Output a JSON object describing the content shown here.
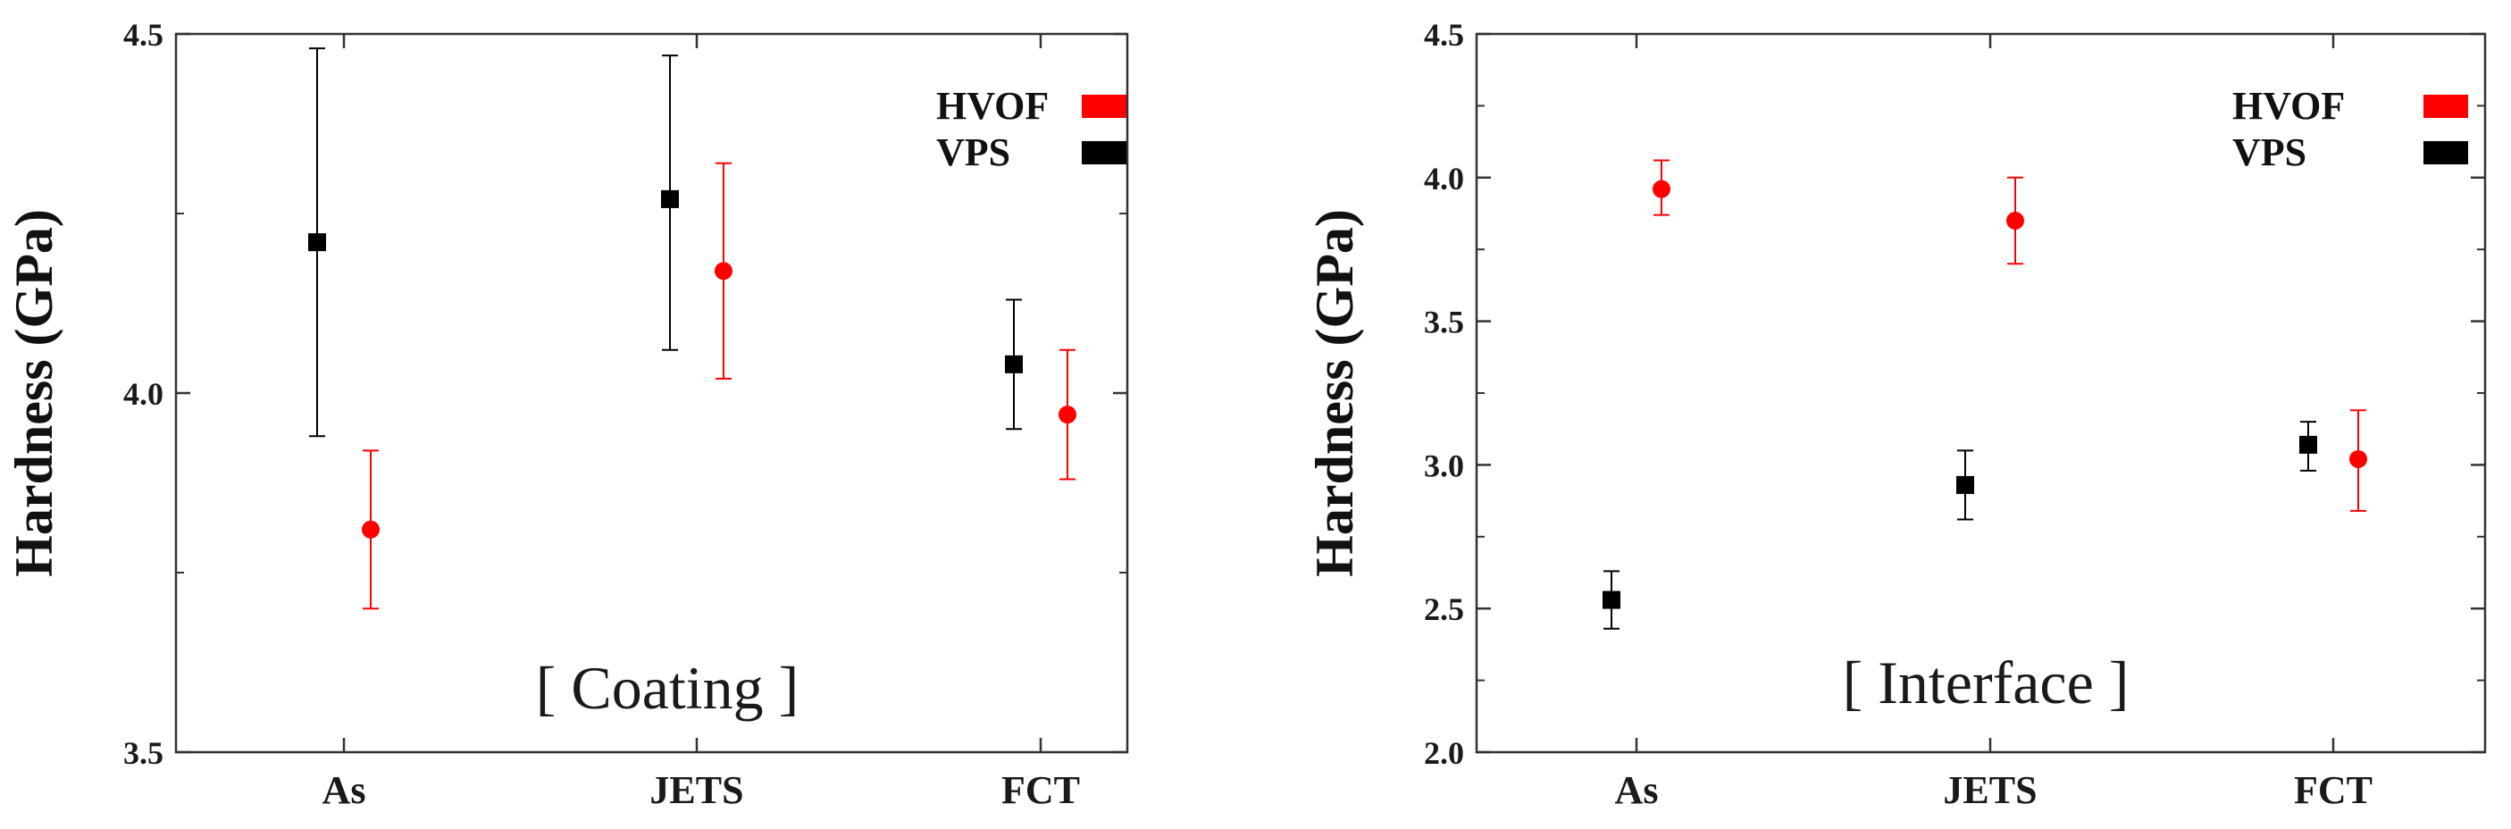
{
  "chart_data": [
    {
      "type": "scatter",
      "title": "",
      "annotation": "[ Coating ]",
      "xlabel": "",
      "ylabel": "Hardness (GPa)",
      "ylim": [
        3.5,
        4.5
      ],
      "yticks": [
        3.5,
        4.0,
        4.5
      ],
      "ytick_labels": [
        "3.5",
        "4.0",
        "4.5"
      ],
      "categories": [
        "As",
        "JETS",
        "FCT"
      ],
      "legend_position": "top-right",
      "series": [
        {
          "name": "HVOF",
          "color": "#ff0000",
          "marker": "circle",
          "values": [
            3.81,
            4.17,
            3.97
          ],
          "err_low": [
            3.7,
            4.02,
            3.88
          ],
          "err_high": [
            3.92,
            4.32,
            4.06
          ]
        },
        {
          "name": "VPS",
          "color": "#000000",
          "marker": "square",
          "values": [
            4.21,
            4.27,
            4.04
          ],
          "err_low": [
            3.94,
            4.06,
            3.95
          ],
          "err_high": [
            4.48,
            4.47,
            4.13
          ]
        }
      ]
    },
    {
      "type": "scatter",
      "title": "",
      "annotation": "[ Interface ]",
      "xlabel": "",
      "ylabel": "Hardness (GPa)",
      "ylim": [
        2.0,
        4.5
      ],
      "yticks": [
        2.0,
        2.5,
        3.0,
        3.5,
        4.0,
        4.5
      ],
      "ytick_labels": [
        "2.0",
        "2.5",
        "3.0",
        "3.5",
        "4.0",
        "4.5"
      ],
      "categories": [
        "As",
        "JETS",
        "FCT"
      ],
      "legend_position": "top-right",
      "series": [
        {
          "name": "HVOF",
          "color": "#ff0000",
          "marker": "circle",
          "values": [
            3.96,
            3.85,
            3.02
          ],
          "err_low": [
            3.87,
            3.7,
            2.84
          ],
          "err_high": [
            4.06,
            4.0,
            3.19
          ]
        },
        {
          "name": "VPS",
          "color": "#000000",
          "marker": "square",
          "values": [
            2.53,
            2.93,
            3.07
          ],
          "err_low": [
            2.43,
            2.81,
            2.98
          ],
          "err_high": [
            2.63,
            3.05,
            3.15
          ]
        }
      ]
    }
  ]
}
